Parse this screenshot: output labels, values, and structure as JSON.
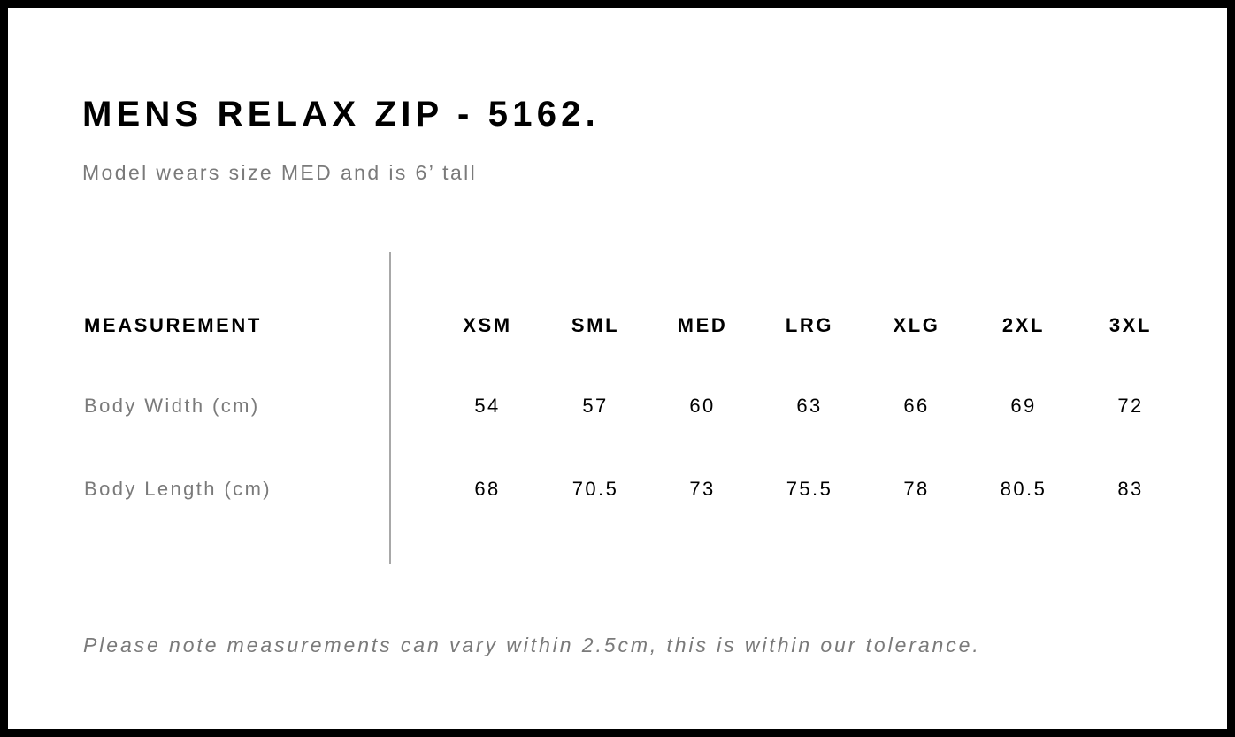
{
  "title": "MENS RELAX ZIP - 5162.",
  "subtitle": "Model wears size MED and is 6’ tall",
  "table": {
    "header_label": "MEASUREMENT",
    "sizes": [
      "XSM",
      "SML",
      "MED",
      "LRG",
      "XLG",
      "2XL",
      "3XL"
    ],
    "rows": [
      {
        "label": "Body Width (cm)",
        "values": [
          "54",
          "57",
          "60",
          "63",
          "66",
          "69",
          "72"
        ]
      },
      {
        "label": "Body Length (cm)",
        "values": [
          "68",
          "70.5",
          "73",
          "75.5",
          "78",
          "80.5",
          "83"
        ]
      }
    ]
  },
  "note": "Please note measurements can vary within 2.5cm, this is within our tolerance.",
  "colors": {
    "border": "#000000",
    "text": "#000000",
    "muted": "#7a7a7a",
    "divider": "#a8a8a8"
  }
}
